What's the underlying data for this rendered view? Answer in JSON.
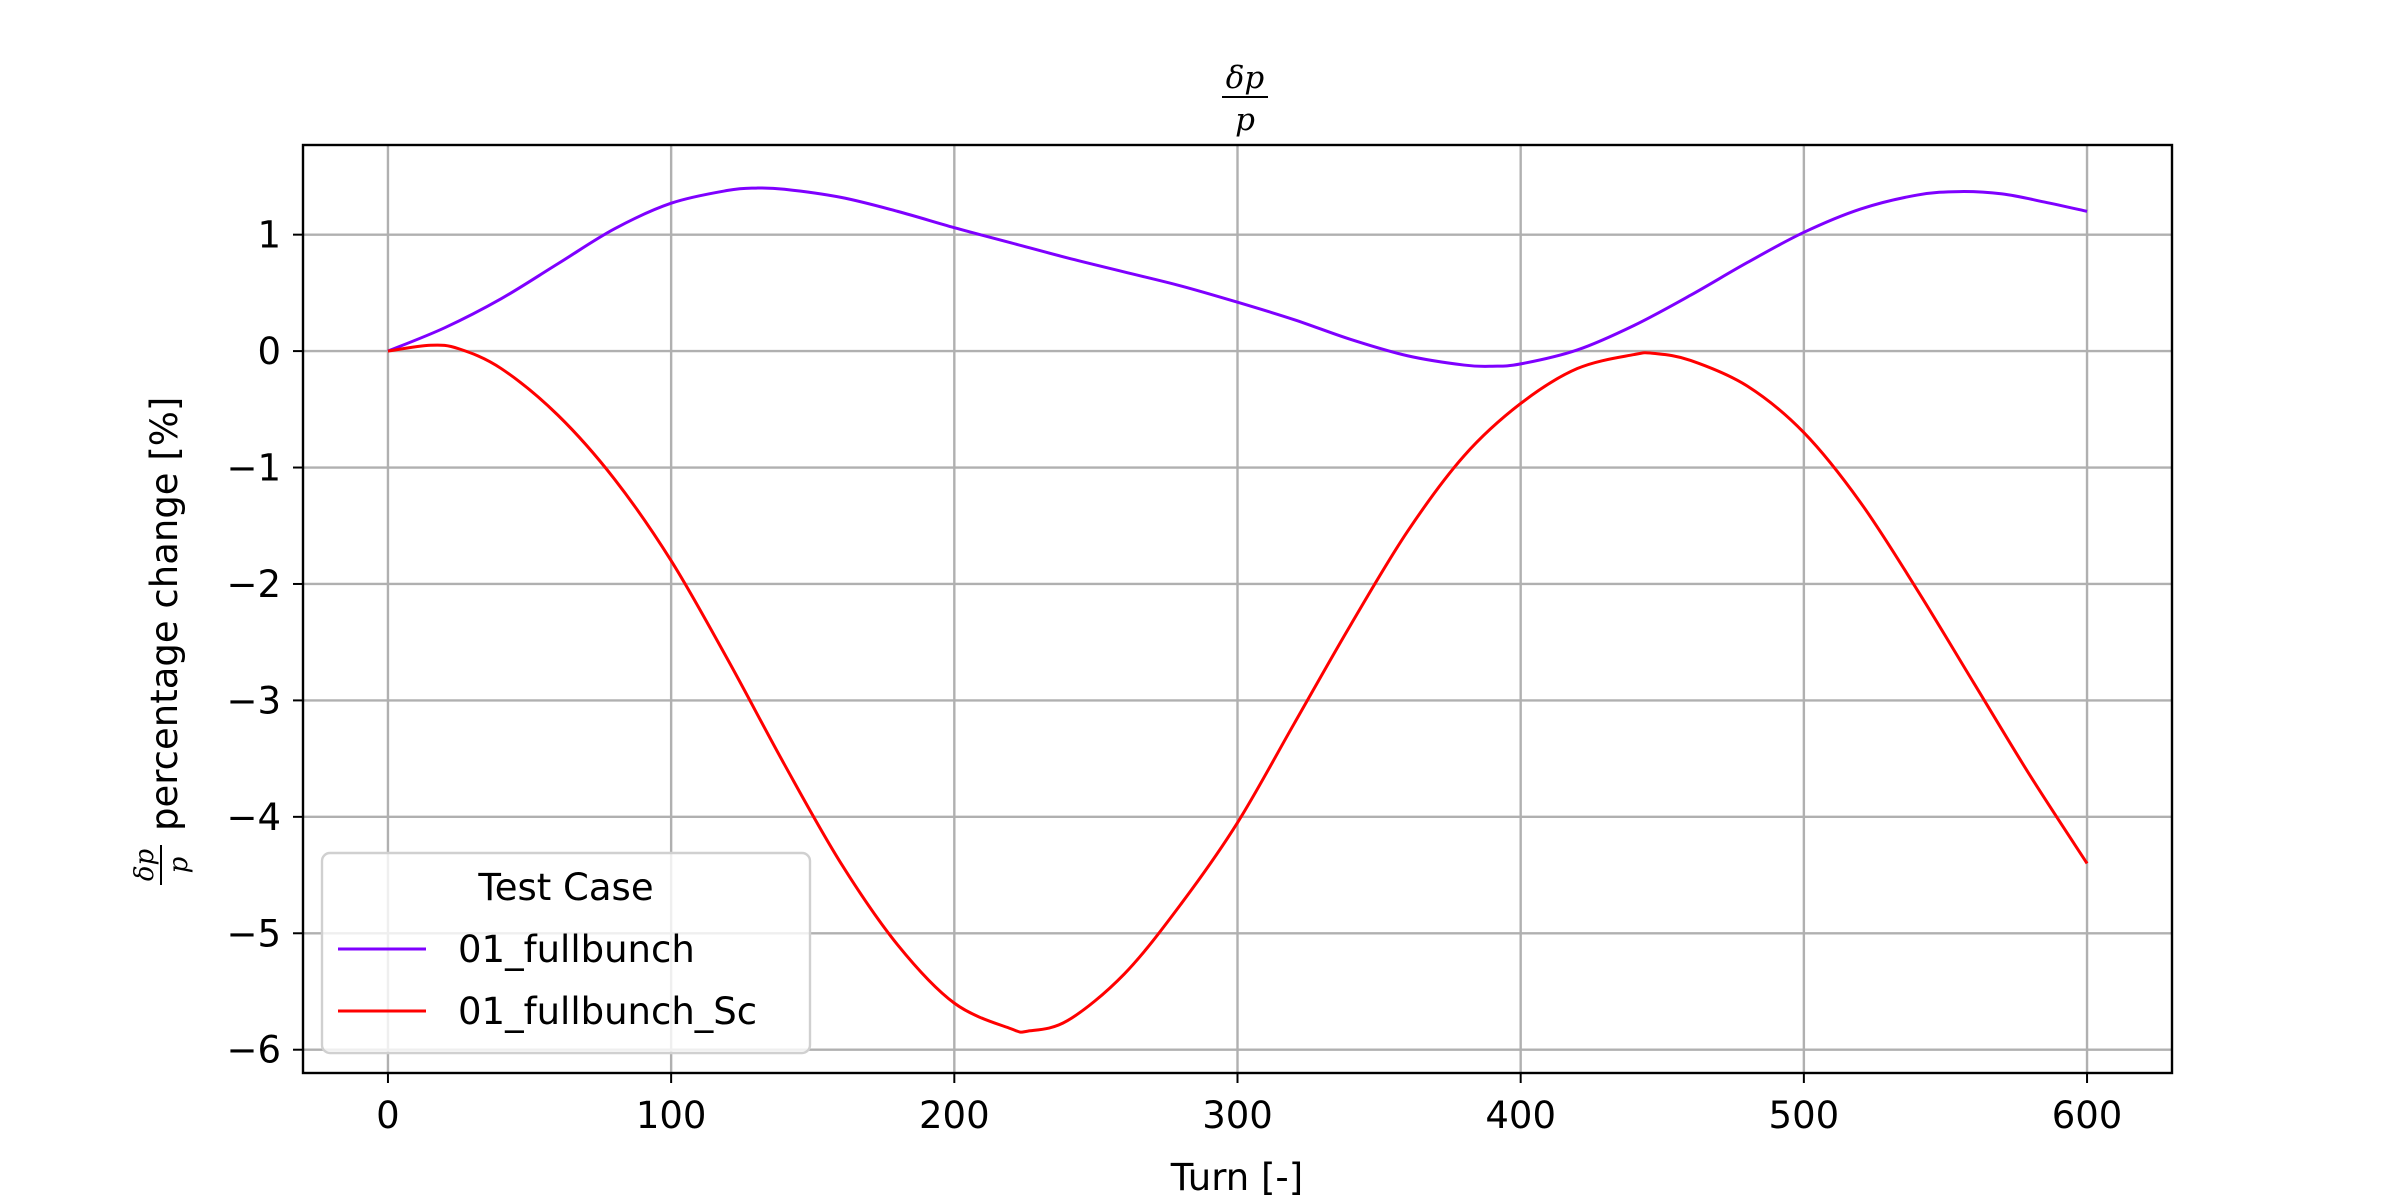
{
  "chart_data": {
    "type": "line",
    "title": "δp/p",
    "title_numerator": "δp",
    "title_denominator": "p",
    "xlabel": "Turn [-]",
    "ylabel": "percentage change [%]",
    "ylabel_prefix_numerator": "δp",
    "ylabel_prefix_denominator": "p",
    "xlim": [
      -30,
      630
    ],
    "ylim": [
      -6.2,
      1.77
    ],
    "xticks": [
      0,
      100,
      200,
      300,
      400,
      500,
      600
    ],
    "xtick_labels": [
      "0",
      "100",
      "200",
      "300",
      "400",
      "500",
      "600"
    ],
    "yticks": [
      1,
      0,
      -1,
      -2,
      -3,
      -4,
      -5,
      -6
    ],
    "ytick_labels": [
      "1",
      "0",
      "−1",
      "−2",
      "−3",
      "−4",
      "−5",
      "−6"
    ],
    "grid": true,
    "legend": {
      "title": "Test Case",
      "placement": "lower-left"
    },
    "series": [
      {
        "name": "01_fullbunch",
        "color": "#7f00ff",
        "x": [
          0,
          20,
          40,
          60,
          80,
          100,
          120,
          130,
          140,
          160,
          180,
          200,
          220,
          240,
          260,
          280,
          300,
          320,
          340,
          360,
          380,
          390,
          400,
          420,
          440,
          460,
          480,
          500,
          520,
          540,
          555,
          570,
          585,
          600
        ],
        "y": [
          0,
          0.2,
          0.45,
          0.75,
          1.05,
          1.27,
          1.38,
          1.4,
          1.39,
          1.32,
          1.2,
          1.06,
          0.93,
          0.8,
          0.68,
          0.56,
          0.42,
          0.27,
          0.1,
          -0.04,
          -0.12,
          -0.13,
          -0.11,
          0.01,
          0.22,
          0.48,
          0.76,
          1.02,
          1.22,
          1.34,
          1.37,
          1.35,
          1.28,
          1.2
        ]
      },
      {
        "name": "01_fullbunch_Sc",
        "color": "#ff0000",
        "x": [
          0,
          15,
          25,
          40,
          60,
          80,
          100,
          120,
          140,
          160,
          180,
          200,
          220,
          226,
          240,
          260,
          280,
          300,
          320,
          340,
          360,
          380,
          400,
          420,
          440,
          447,
          460,
          480,
          500,
          520,
          540,
          560,
          580,
          600
        ],
        "y": [
          0,
          0.05,
          0.02,
          -0.15,
          -0.55,
          -1.1,
          -1.8,
          -2.65,
          -3.55,
          -4.4,
          -5.1,
          -5.6,
          -5.82,
          -5.84,
          -5.75,
          -5.35,
          -4.75,
          -4.05,
          -3.2,
          -2.35,
          -1.55,
          -0.9,
          -0.45,
          -0.15,
          -0.03,
          -0.02,
          -0.08,
          -0.3,
          -0.7,
          -1.3,
          -2.05,
          -2.85,
          -3.65,
          -4.4
        ]
      }
    ]
  }
}
